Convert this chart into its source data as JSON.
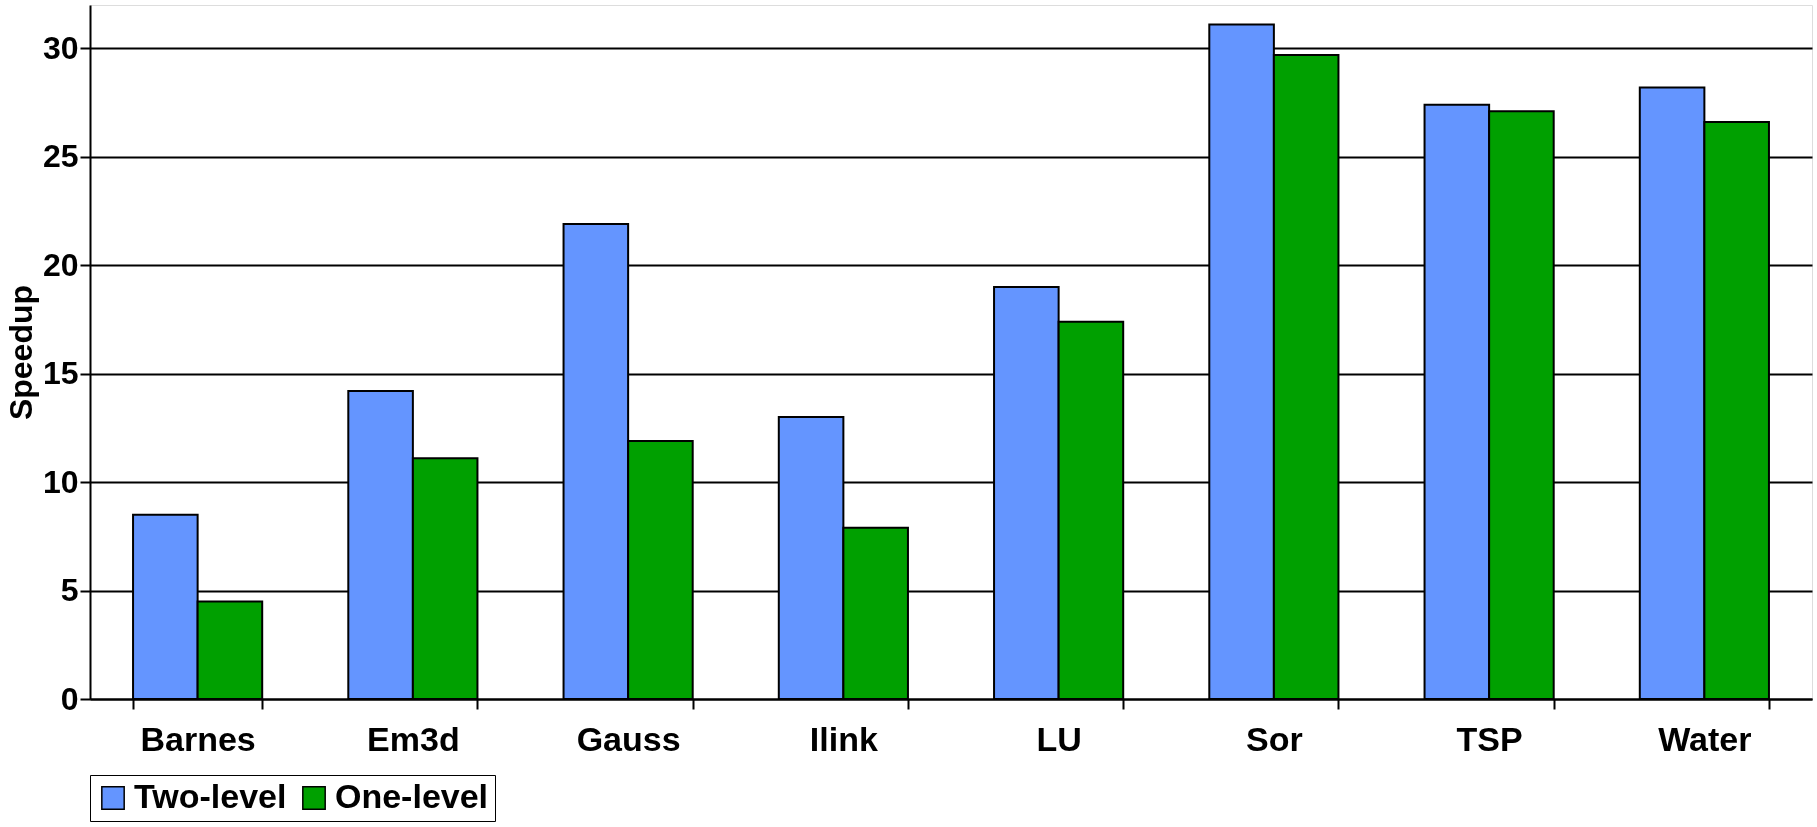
{
  "chart_data": {
    "type": "bar",
    "ylabel": "Speedup",
    "categories": [
      "Barnes",
      "Em3d",
      "Gauss",
      "Ilink",
      "LU",
      "Sor",
      "TSP",
      "Water"
    ],
    "series": [
      {
        "name": "Two-level",
        "color": "#6495ff",
        "values": [
          8.5,
          14.2,
          21.9,
          13.0,
          19.0,
          31.1,
          27.4,
          28.2
        ]
      },
      {
        "name": "One-level",
        "color": "#00a000",
        "values": [
          4.5,
          11.1,
          11.9,
          7.9,
          17.4,
          29.7,
          27.1,
          26.6
        ]
      }
    ],
    "ylim": [
      0,
      32
    ],
    "yticks": [
      0,
      5,
      10,
      15,
      20,
      25,
      30
    ],
    "grid": "y",
    "legend": "bottom"
  }
}
